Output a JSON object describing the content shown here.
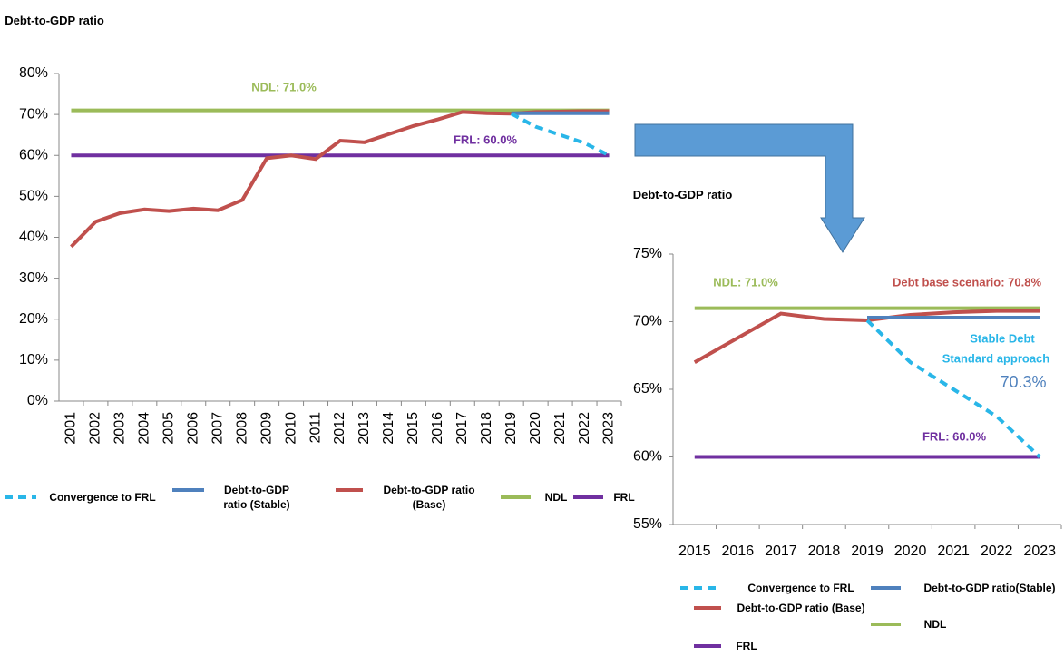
{
  "chart_data": [
    {
      "type": "line",
      "y_label": "Debt-to-GDP ratio",
      "categories": [
        "2001",
        "2002",
        "2003",
        "2004",
        "2005",
        "2006",
        "2007",
        "2008",
        "2009",
        "2010",
        "2011",
        "2012",
        "2013",
        "2014",
        "2015",
        "2016",
        "2017",
        "2018",
        "2019",
        "2020",
        "2021",
        "2022",
        "2023"
      ],
      "ylim": [
        0,
        80
      ],
      "yticks": [
        {
          "value": 0,
          "label": "0%"
        },
        {
          "value": 10,
          "label": "10%"
        },
        {
          "value": 20,
          "label": "20%"
        },
        {
          "value": 30,
          "label": "30%"
        },
        {
          "value": 40,
          "label": "40%"
        },
        {
          "value": 50,
          "label": "50%"
        },
        {
          "value": 60,
          "label": "60%"
        },
        {
          "value": 70,
          "label": "70%"
        },
        {
          "value": 80,
          "label": "80%"
        }
      ],
      "series": [
        {
          "name": "Convergence to FRL",
          "color": "#29b6e8",
          "style": "dashed",
          "values": [
            null,
            null,
            null,
            null,
            null,
            null,
            null,
            null,
            null,
            null,
            null,
            null,
            null,
            null,
            null,
            null,
            null,
            null,
            70.2,
            67,
            65,
            63,
            60
          ]
        },
        {
          "name": "Debt-to-GDP ratio (Stable)",
          "color": "#4f81bd",
          "style": "solid",
          "values": [
            null,
            null,
            null,
            null,
            null,
            null,
            null,
            null,
            null,
            null,
            null,
            null,
            null,
            null,
            null,
            null,
            null,
            null,
            70.3,
            70.3,
            70.3,
            70.3,
            70.3
          ]
        },
        {
          "name": "Debt-to-GDP ratio (Base)",
          "color": "#c0504d",
          "style": "solid",
          "values": [
            37.7,
            43.8,
            45.9,
            46.8,
            46.4,
            47.0,
            46.6,
            49.1,
            59.3,
            60.0,
            59.1,
            63.6,
            63.2,
            65.2,
            67.2,
            68.8,
            70.6,
            70.3,
            70.2,
            70.6,
            70.7,
            70.8,
            70.8
          ]
        },
        {
          "name": "NDL",
          "color": "#9bbb59",
          "style": "solid",
          "values": [
            71,
            71,
            71,
            71,
            71,
            71,
            71,
            71,
            71,
            71,
            71,
            71,
            71,
            71,
            71,
            71,
            71,
            71,
            71,
            71,
            71,
            71,
            71
          ]
        },
        {
          "name": "FRL",
          "color": "#7030a0",
          "style": "solid",
          "values": [
            60,
            60,
            60,
            60,
            60,
            60,
            60,
            60,
            60,
            60,
            60,
            60,
            60,
            60,
            60,
            60,
            60,
            60,
            60,
            60,
            60,
            60,
            60
          ]
        }
      ],
      "annotations": [
        "NDL: 71.0%",
        "FRL: 60.0%"
      ]
    },
    {
      "type": "line",
      "y_label": "Debt-to-GDP ratio",
      "categories": [
        "2015",
        "2016",
        "2017",
        "2018",
        "2019",
        "2020",
        "2021",
        "2022",
        "2023"
      ],
      "ylim": [
        55,
        75
      ],
      "yticks": [
        {
          "value": 55,
          "label": "55%"
        },
        {
          "value": 60,
          "label": "60%"
        },
        {
          "value": 65,
          "label": "65%"
        },
        {
          "value": 70,
          "label": "70%"
        },
        {
          "value": 75,
          "label": "75%"
        }
      ],
      "series": [
        {
          "name": "Convergence to FRL",
          "color": "#29b6e8",
          "style": "dashed",
          "values": [
            null,
            null,
            null,
            null,
            70.1,
            67,
            65,
            63,
            60
          ]
        },
        {
          "name": "Debt-to-GDP  ratio(Stable)",
          "color": "#4f81bd",
          "style": "solid",
          "values": [
            null,
            null,
            null,
            null,
            70.3,
            70.3,
            70.3,
            70.3,
            70.3
          ]
        },
        {
          "name": "Debt-to-GDP ratio (Base)",
          "color": "#c0504d",
          "style": "solid",
          "values": [
            67.0,
            68.8,
            70.6,
            70.2,
            70.1,
            70.5,
            70.7,
            70.8,
            70.8
          ]
        },
        {
          "name": "NDL",
          "color": "#9bbb59",
          "style": "solid",
          "values": [
            71,
            71,
            71,
            71,
            71,
            71,
            71,
            71,
            71
          ]
        },
        {
          "name": "FRL",
          "color": "#7030a0",
          "style": "solid",
          "values": [
            60,
            60,
            60,
            60,
            60,
            60,
            60,
            60,
            60
          ]
        }
      ],
      "annotations": [
        "NDL: 71.0%",
        "Debt base scenario: 70.8%",
        "Stable Debt",
        "Standard approach",
        "70.3%",
        "FRL: 60.0%"
      ]
    }
  ]
}
